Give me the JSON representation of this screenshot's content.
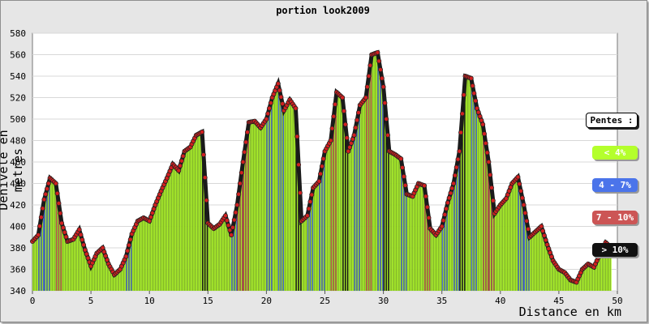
{
  "chart_data": {
    "type": "area",
    "title": "portion look2009",
    "xlabel": "Distance en km",
    "ylabel": "Dénivelé en metres",
    "xlim": [
      0,
      50
    ],
    "ylim": [
      340,
      580
    ],
    "xticks": [
      0,
      5,
      10,
      15,
      20,
      25,
      30,
      35,
      40,
      45,
      50
    ],
    "yticks": [
      340,
      360,
      380,
      400,
      420,
      440,
      460,
      480,
      500,
      520,
      540,
      560,
      580
    ],
    "grid": true,
    "legend_placement": "right",
    "legend_title": "Pentes :",
    "legend": [
      {
        "label": "< 4%",
        "color": "#b4ff2c",
        "text_color": "#ffffff"
      },
      {
        "label": "4 - 7%",
        "color": "#4b74ea",
        "text_color": "#ffffff"
      },
      {
        "label": "7 - 10%",
        "color": "#cc5555",
        "text_color": "#ffffff"
      },
      {
        "label": "> 10%",
        "color": "#111111",
        "text_color": "#ffffff"
      }
    ],
    "x": [
      0,
      0.5,
      1,
      1.5,
      2,
      2.5,
      3,
      3.5,
      4,
      4.5,
      5,
      5.5,
      6,
      6.5,
      7,
      7.5,
      8,
      8.5,
      9,
      9.5,
      10,
      10.5,
      11,
      11.5,
      12,
      12.5,
      13,
      13.5,
      14,
      14.5,
      15,
      15.5,
      16,
      16.5,
      17,
      17.5,
      18,
      18.5,
      19,
      19.5,
      20,
      20.5,
      21,
      21.5,
      22,
      22.5,
      23,
      23.5,
      24,
      24.5,
      25,
      25.5,
      26,
      26.5,
      27,
      27.5,
      28,
      28.5,
      29,
      29.5,
      30,
      30.5,
      31,
      31.5,
      32,
      32.5,
      33,
      33.5,
      34,
      34.5,
      35,
      35.5,
      36,
      36.5,
      37,
      37.5,
      38,
      38.5,
      39,
      39.5,
      40,
      40.5,
      41,
      41.5,
      42,
      42.5,
      43,
      43.5,
      44,
      44.5,
      45,
      45.5,
      46,
      46.5,
      47,
      47.5,
      48,
      48.5,
      49,
      49.5
    ],
    "y": [
      386,
      392,
      425,
      445,
      440,
      403,
      386,
      388,
      397,
      378,
      363,
      375,
      380,
      365,
      355,
      360,
      372,
      393,
      405,
      408,
      405,
      420,
      433,
      445,
      458,
      452,
      470,
      474,
      485,
      488,
      403,
      398,
      402,
      410,
      392,
      420,
      460,
      497,
      498,
      492,
      500,
      520,
      533,
      508,
      518,
      510,
      405,
      410,
      436,
      442,
      470,
      480,
      525,
      520,
      470,
      485,
      513,
      520,
      560,
      562,
      530,
      470,
      467,
      463,
      430,
      428,
      440,
      438,
      398,
      392,
      400,
      422,
      440,
      470,
      540,
      538,
      510,
      495,
      460,
      412,
      420,
      426,
      440,
      446,
      420,
      390,
      395,
      400,
      383,
      368,
      360,
      357,
      350,
      348,
      360,
      365,
      362,
      374,
      385,
      380
    ]
  }
}
